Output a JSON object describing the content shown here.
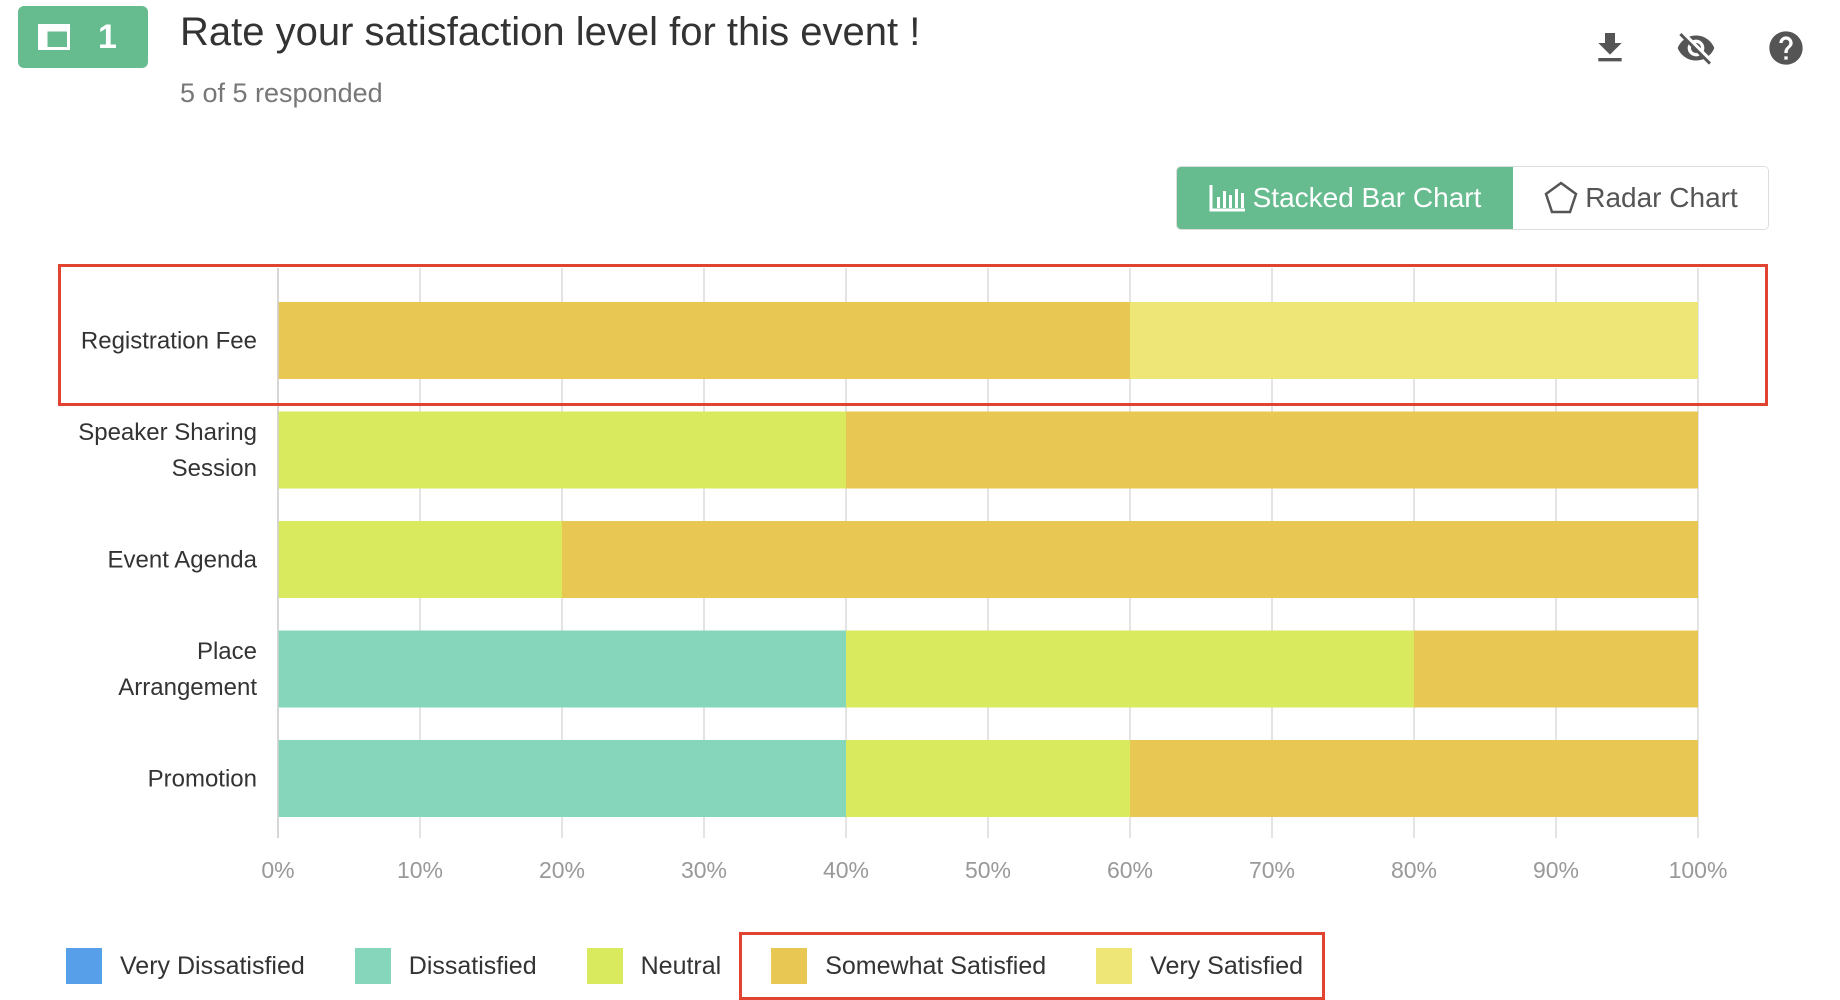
{
  "question": {
    "number": "1",
    "title": "Rate your satisfaction level for this event !",
    "responded": "5 of 5 responded"
  },
  "toolbar": {
    "download_icon": "download-icon",
    "hide_icon": "eye-off-icon",
    "help_icon": "help-icon"
  },
  "view_toggle": {
    "stacked_label": "Stacked Bar Chart",
    "radar_label": "Radar Chart"
  },
  "chart_data": {
    "type": "bar",
    "orientation": "horizontal",
    "stacked": true,
    "categories": [
      "Registration Fee",
      "Speaker Sharing Session",
      "Event Agenda",
      "Place Arrangement",
      "Promotion"
    ],
    "category_lines": [
      [
        "Registration Fee"
      ],
      [
        "Speaker Sharing",
        "Session"
      ],
      [
        "Event Agenda"
      ],
      [
        "Place",
        "Arrangement"
      ],
      [
        "Promotion"
      ]
    ],
    "series": [
      {
        "name": "Very Dissatisfied",
        "color": "#579fe8",
        "values": [
          0,
          0,
          0,
          0,
          0
        ]
      },
      {
        "name": "Dissatisfied",
        "color": "#85d6bb",
        "values": [
          0,
          0,
          0,
          40,
          40
        ]
      },
      {
        "name": "Neutral",
        "color": "#d9ea5f",
        "values": [
          0,
          40,
          20,
          40,
          20
        ]
      },
      {
        "name": "Somewhat Satisfied",
        "color": "#e8c853",
        "values": [
          60,
          60,
          80,
          20,
          40
        ]
      },
      {
        "name": "Very Satisfied",
        "color": "#efe678",
        "values": [
          40,
          0,
          0,
          0,
          0
        ]
      }
    ],
    "xlim": [
      0,
      100
    ],
    "xticks": [
      "0%",
      "10%",
      "20%",
      "30%",
      "40%",
      "50%",
      "60%",
      "70%",
      "80%",
      "90%",
      "100%"
    ],
    "grid": true,
    "legend_position": "bottom",
    "highlight_color": "#e04430"
  },
  "legend": {
    "items": [
      {
        "label": "Very Dissatisfied",
        "color": "#579fe8"
      },
      {
        "label": "Dissatisfied",
        "color": "#85d6bb"
      },
      {
        "label": "Neutral",
        "color": "#d9ea5f"
      },
      {
        "label": "Somewhat Satisfied",
        "color": "#e8c853"
      },
      {
        "label": "Very Satisfied",
        "color": "#efe678"
      }
    ]
  }
}
